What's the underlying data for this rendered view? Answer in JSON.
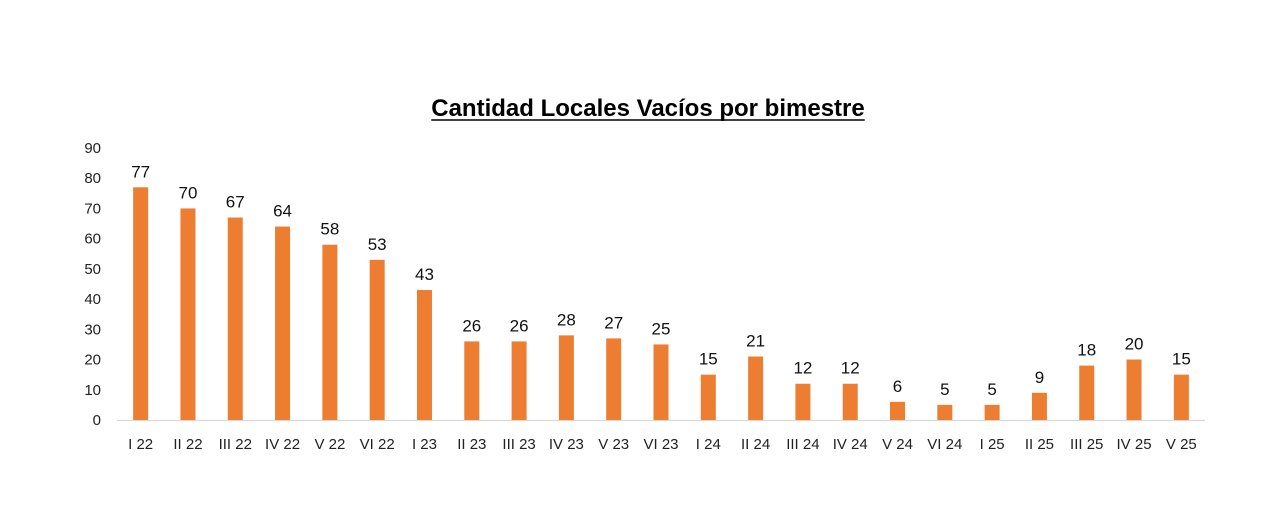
{
  "chart_data": {
    "type": "bar",
    "title": "Cantidad Locales Vacíos por bimestre",
    "xlabel": "",
    "ylabel": "",
    "ylim": [
      0,
      90
    ],
    "yticks": [
      "0",
      "10",
      "20",
      "30",
      "40",
      "50",
      "60",
      "70",
      "80",
      "90"
    ],
    "categories": [
      "I 22",
      "II 22",
      "III 22",
      "IV 22",
      "V 22",
      "VI 22",
      "I 23",
      "II 23",
      "III 23",
      "IV 23",
      "V 23",
      "VI 23",
      "I 24",
      "II 24",
      "III 24",
      "IV 24",
      "V 24",
      "VI 24",
      "I 25",
      "II 25",
      "III 25",
      "IV 25",
      "V 25"
    ],
    "values": [
      77,
      70,
      67,
      64,
      58,
      53,
      43,
      26,
      26,
      28,
      27,
      25,
      15,
      21,
      12,
      12,
      6,
      5,
      5,
      9,
      18,
      20,
      15
    ],
    "data_labels": [
      "77",
      "70",
      "67",
      "64",
      "58",
      "53",
      "43",
      "26",
      "26",
      "28",
      "27",
      "25",
      "15",
      "21",
      "12",
      "12",
      "6",
      "5",
      "5",
      "9",
      "18",
      "20",
      "15"
    ],
    "grid": false,
    "legend": "none",
    "bar_color": "#ED7D31",
    "axis_color": "#D9D9D9"
  }
}
